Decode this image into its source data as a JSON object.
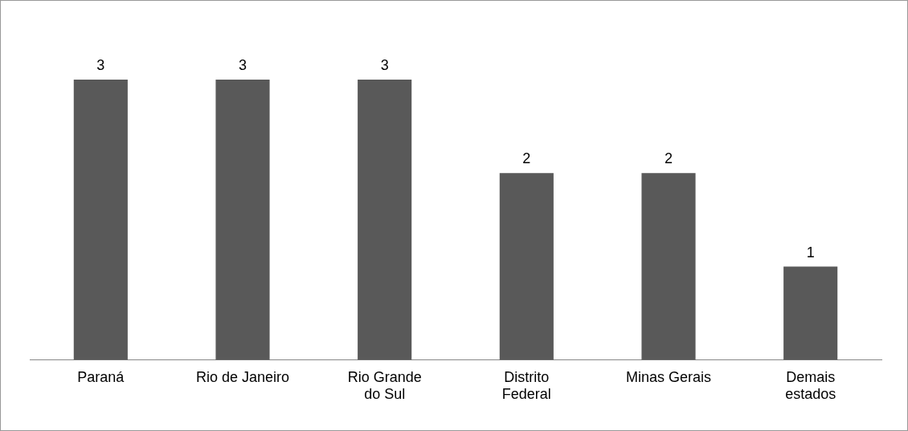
{
  "chart_data": {
    "type": "bar",
    "categories": [
      "Paraná",
      "Rio de Janeiro",
      "Rio Grande\ndo Sul",
      "Distrito\nFederal",
      "Minas Gerais",
      "Demais\nestados"
    ],
    "values": [
      3,
      3,
      3,
      2,
      2,
      1
    ],
    "color": "#595959",
    "data_labels": true,
    "grid": false,
    "legend": false
  }
}
